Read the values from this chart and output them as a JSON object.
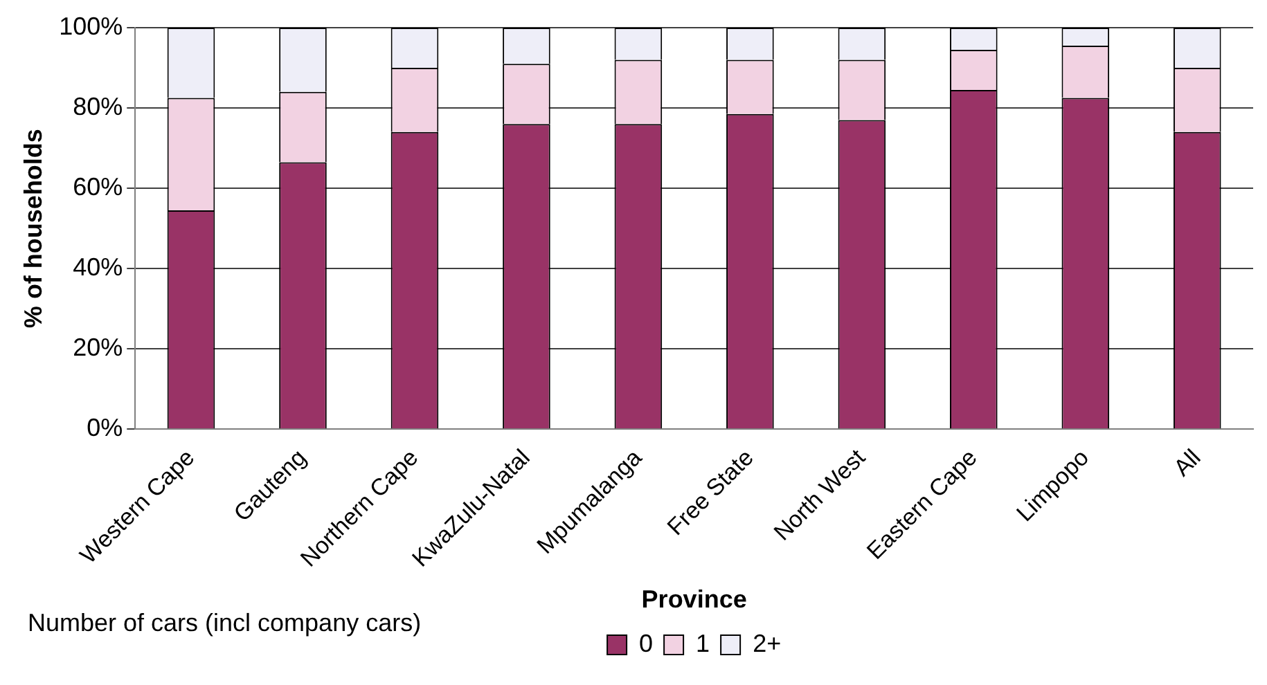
{
  "chart_data": {
    "type": "bar",
    "stacked": true,
    "xlabel": "Province",
    "ylabel": "% of households",
    "legend_title": "Number of cars (incl company cars)",
    "legend": "bottom",
    "grid": "y",
    "categories": [
      "Western Cape",
      "Gauteng",
      "Northern Cape",
      "KwaZulu-Natal",
      "Mpumalanga",
      "Free State",
      "North West",
      "Eastern Cape",
      "Limpopo",
      "All"
    ],
    "ylim": [
      0,
      100
    ],
    "yticks": [
      {
        "value": 0,
        "label": "0%"
      },
      {
        "value": 20,
        "label": "20%"
      },
      {
        "value": 40,
        "label": "40%"
      },
      {
        "value": 60,
        "label": "60%"
      },
      {
        "value": 80,
        "label": "80%"
      },
      {
        "value": 100,
        "label": "100%"
      }
    ],
    "series": [
      {
        "name": "0",
        "color": "#993366",
        "values": [
          54.5,
          66.5,
          74,
          76,
          76,
          78.5,
          77,
          84.5,
          82.5,
          74
        ]
      },
      {
        "name": "1",
        "color": "#f2d2e2",
        "values": [
          28,
          17.5,
          16,
          15,
          16,
          13.5,
          15,
          10,
          13,
          16
        ]
      },
      {
        "name": "2+",
        "color": "#eeeef8",
        "values": [
          17.5,
          16,
          10,
          9,
          8,
          8,
          8,
          5.5,
          4.5,
          10
        ]
      }
    ]
  }
}
